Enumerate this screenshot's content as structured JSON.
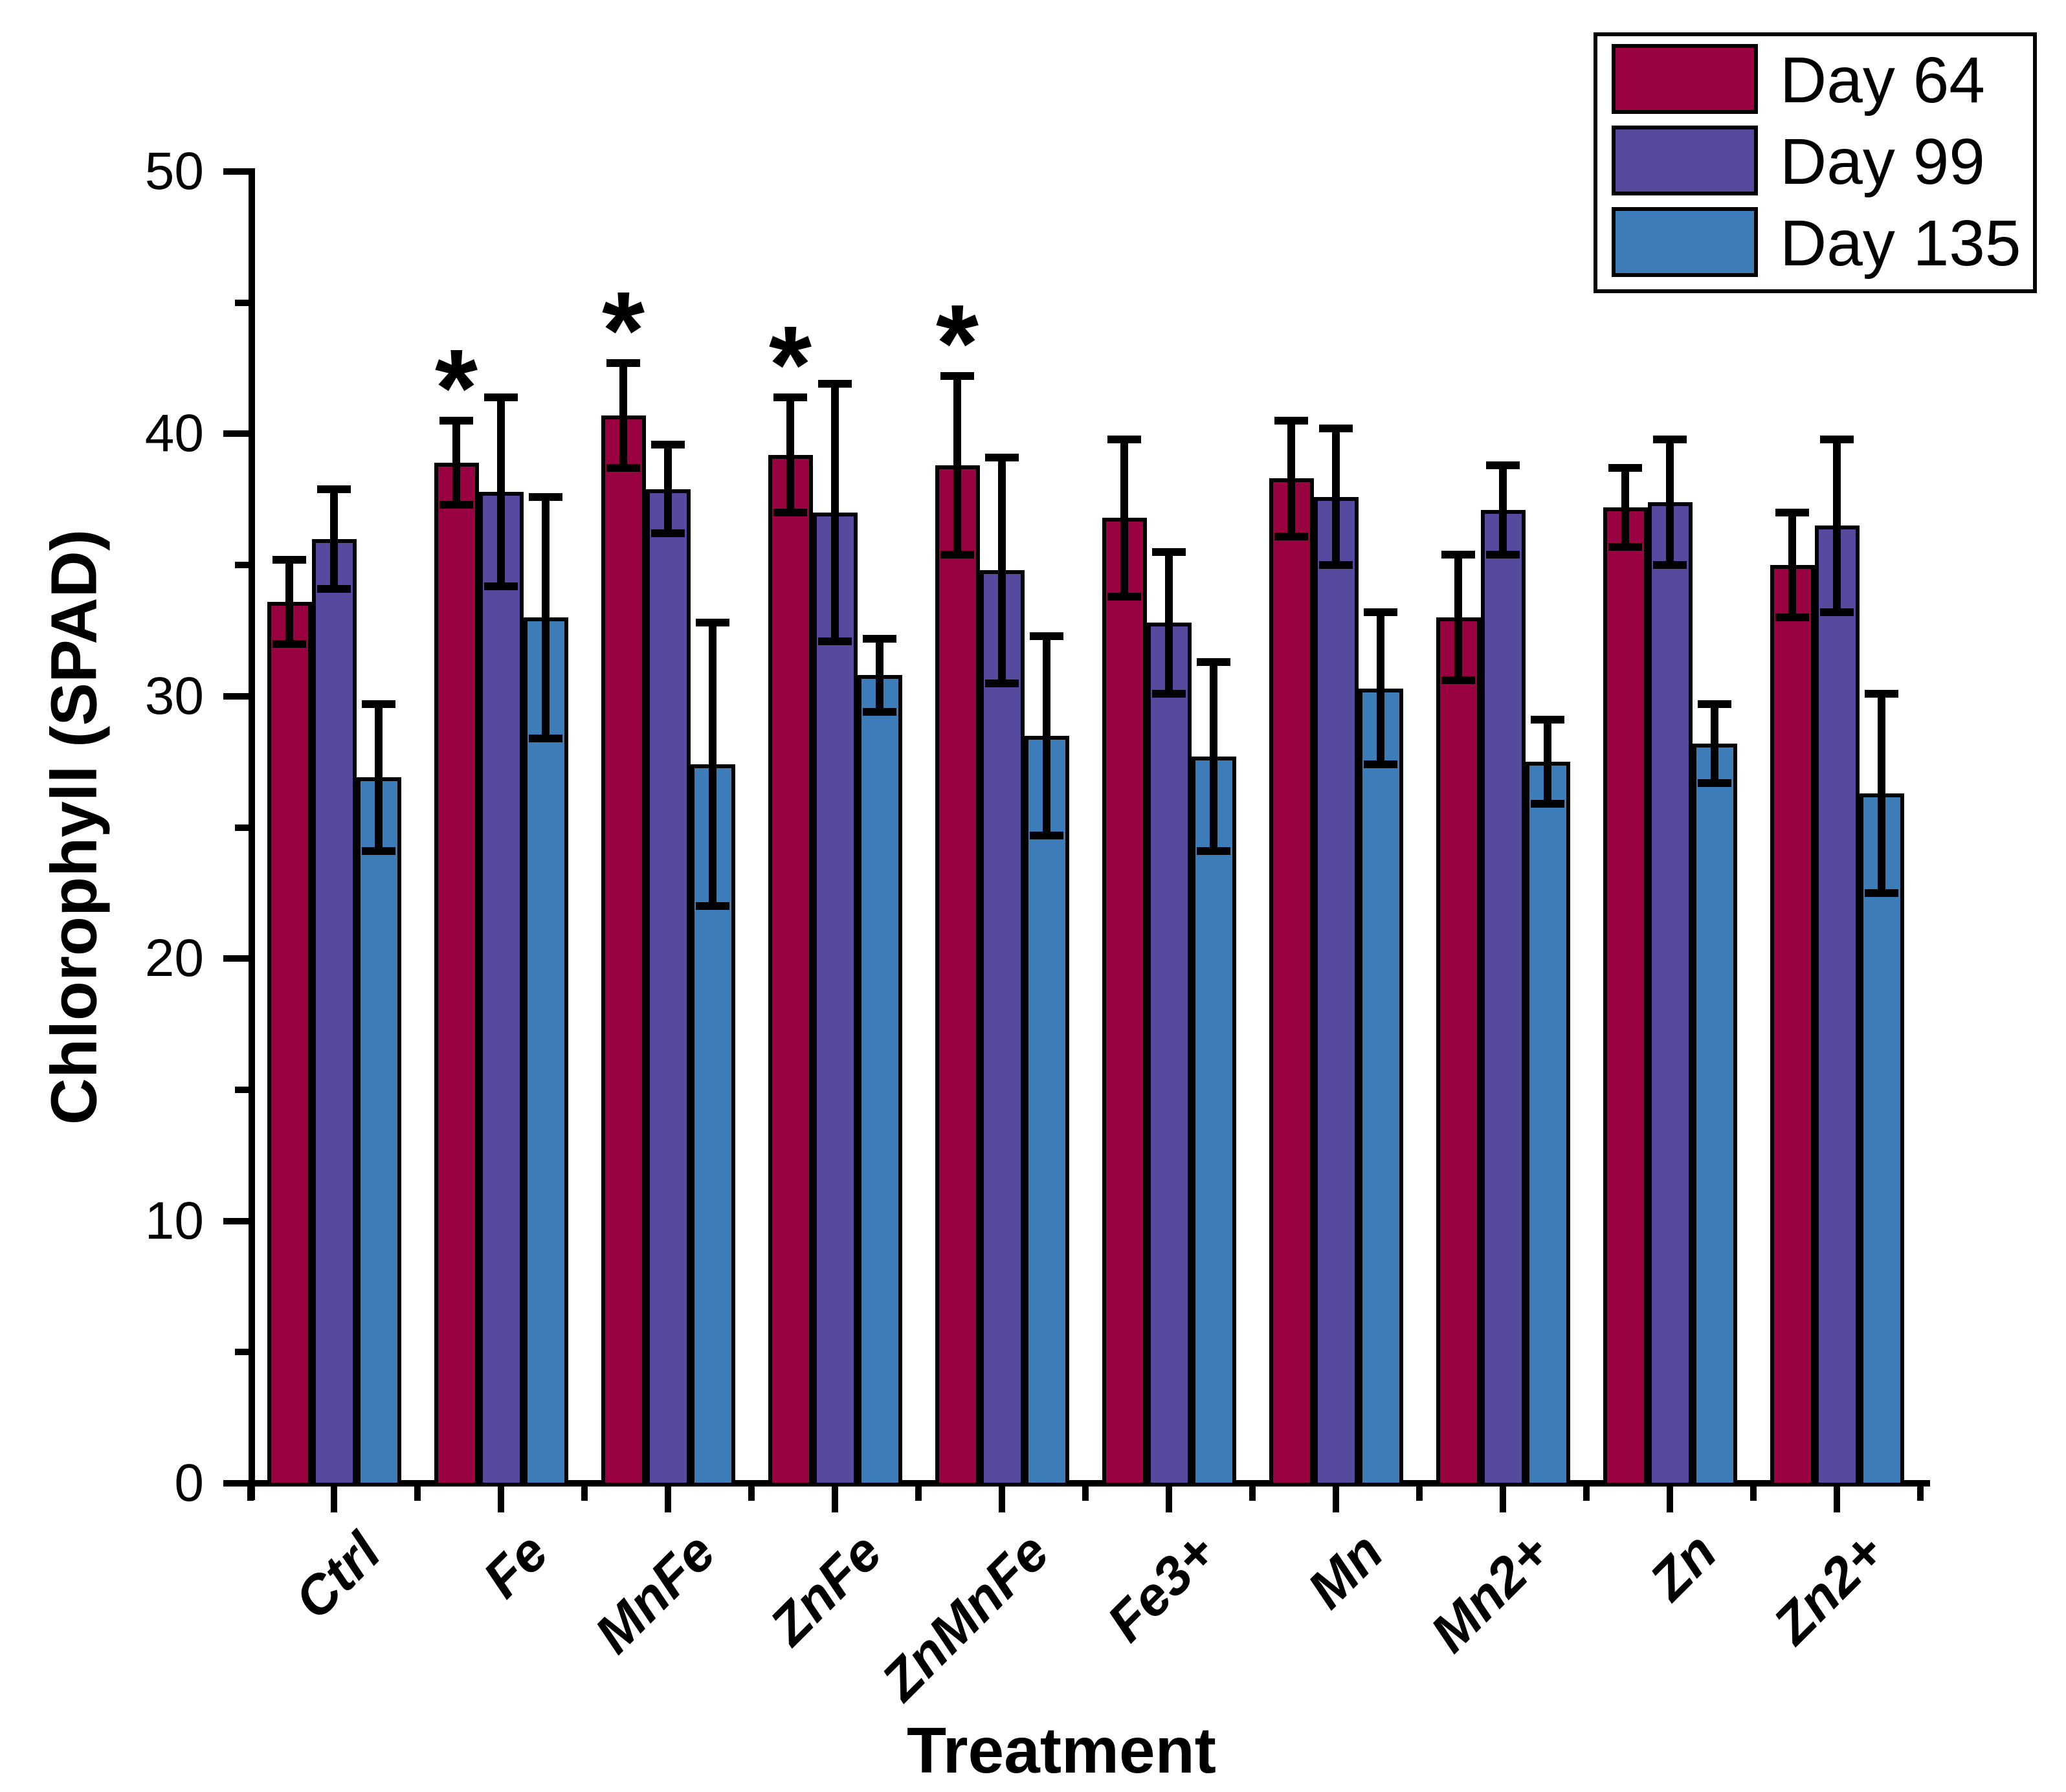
{
  "chart_data": {
    "type": "bar",
    "title": "",
    "xlabel": "Treatment",
    "ylabel": "Chlorophyll (SPAD)",
    "ylim": [
      0,
      50
    ],
    "yticks_major": [
      0,
      10,
      20,
      30,
      40,
      50
    ],
    "yticks_minor": [
      5,
      15,
      25,
      35,
      45
    ],
    "grid": "off",
    "legend_position": "top-right",
    "categories": [
      "Ctrl",
      "Fe",
      "MnFe",
      "ZnFe",
      "ZnMnFe",
      "Fe3+",
      "Mn",
      "Mn2+",
      "Zn",
      "Zn2+"
    ],
    "series": [
      {
        "name": "Day 64",
        "color": "#9A0140",
        "values": [
          33.6,
          38.9,
          40.7,
          39.2,
          38.8,
          36.8,
          38.3,
          33.0,
          37.2,
          35.0
        ],
        "errors": [
          1.6,
          1.6,
          2.0,
          2.2,
          3.4,
          3.0,
          2.2,
          2.4,
          1.5,
          2.0
        ]
      },
      {
        "name": "Day 99",
        "color": "#554A9D",
        "values": [
          36.0,
          37.8,
          37.9,
          37.0,
          34.8,
          32.8,
          37.6,
          37.1,
          37.4,
          36.5
        ],
        "errors": [
          1.9,
          3.6,
          1.7,
          4.9,
          4.3,
          2.7,
          2.6,
          1.7,
          2.4,
          3.3
        ]
      },
      {
        "name": "Day 135",
        "color": "#3B7CB9",
        "values": [
          26.9,
          33.0,
          27.4,
          30.8,
          28.5,
          27.7,
          30.3,
          27.5,
          28.2,
          26.3
        ],
        "errors": [
          2.8,
          4.6,
          5.4,
          1.4,
          3.8,
          3.6,
          2.9,
          1.6,
          1.5,
          3.8
        ]
      }
    ],
    "significance": {
      "symbol": "*",
      "series": "Day 64",
      "categories": [
        "Fe",
        "MnFe",
        "ZnFe",
        "ZnMnFe"
      ]
    }
  }
}
